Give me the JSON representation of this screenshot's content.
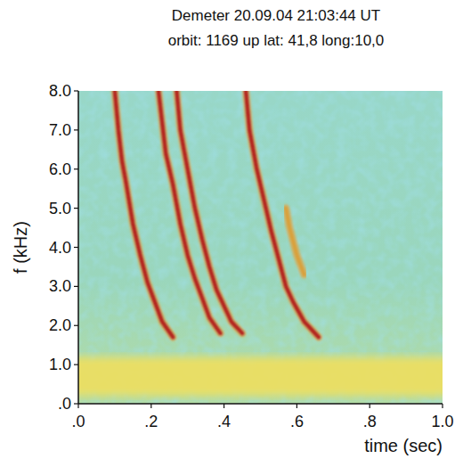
{
  "chart_data": {
    "type": "spectrogram",
    "title": "Demeter 20.09.04  21:03:44 UT",
    "subtitle": "orbit: 1169 up   lat: 41,8   long:10,0",
    "x_label": "time (sec)",
    "y_label": "f (kHz)",
    "xlim": [
      0,
      1
    ],
    "ylim": [
      0,
      8
    ],
    "xticks": [
      {
        "value": 0,
        "label": ".0"
      },
      {
        "value": 0.2,
        "label": ".2"
      },
      {
        "value": 0.4,
        "label": ".4"
      },
      {
        "value": 0.6,
        "label": ".6"
      },
      {
        "value": 0.8,
        "label": ".8"
      },
      {
        "value": 1,
        "label": "1.0"
      }
    ],
    "yticks": [
      {
        "value": 0,
        "label": ".0"
      },
      {
        "value": 1,
        "label": "1.0"
      },
      {
        "value": 2,
        "label": "2.0"
      },
      {
        "value": 3,
        "label": "3.0"
      },
      {
        "value": 4,
        "label": "4.0"
      },
      {
        "value": 5,
        "label": "5.0"
      },
      {
        "value": 6,
        "label": "6.0"
      },
      {
        "value": 7,
        "label": "7.0"
      },
      {
        "value": 8,
        "label": "8.0"
      }
    ],
    "noise_band": [
      0.2,
      1.2
    ],
    "series": [
      {
        "color": "#b3201a",
        "x": [
          0.1,
          0.11,
          0.12,
          0.13,
          0.15,
          0.17,
          0.19,
          0.21,
          0.23,
          0.26
        ],
        "values": [
          8.0,
          7.0,
          6.2,
          5.7,
          4.6,
          3.8,
          3.1,
          2.6,
          2.1,
          1.7
        ]
      },
      {
        "color": "#b3201a",
        "x": [
          0.22,
          0.23,
          0.24,
          0.26,
          0.28,
          0.3,
          0.32,
          0.34,
          0.36,
          0.39
        ],
        "values": [
          8.0,
          7.2,
          6.4,
          5.6,
          4.6,
          3.8,
          3.2,
          2.7,
          2.2,
          1.8
        ]
      },
      {
        "color": "#b3201a",
        "x": [
          0.27,
          0.28,
          0.3,
          0.32,
          0.34,
          0.36,
          0.38,
          0.4,
          0.42,
          0.45
        ],
        "values": [
          8.0,
          7.0,
          6.0,
          5.0,
          4.2,
          3.5,
          2.9,
          2.5,
          2.1,
          1.8
        ]
      },
      {
        "color": "#b3201a",
        "x": [
          0.46,
          0.47,
          0.49,
          0.51,
          0.53,
          0.55,
          0.57,
          0.59,
          0.62,
          0.66
        ],
        "values": [
          8.0,
          7.0,
          6.0,
          5.2,
          4.4,
          3.7,
          3.0,
          2.6,
          2.1,
          1.7
        ]
      },
      {
        "color": "#d9a03a",
        "x": [
          0.57,
          0.58,
          0.6,
          0.62
        ],
        "values": [
          5.0,
          4.5,
          3.8,
          3.3
        ]
      }
    ]
  }
}
